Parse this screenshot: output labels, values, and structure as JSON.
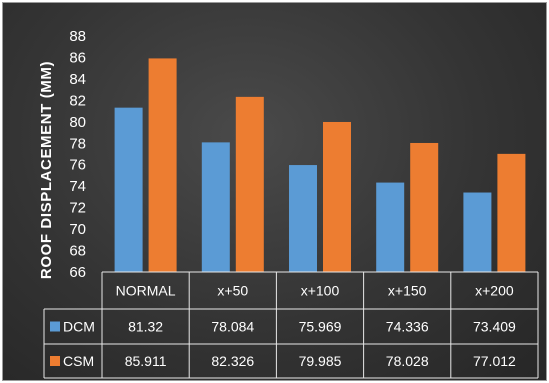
{
  "chart_data": {
    "type": "bar",
    "title": "",
    "xlabel": "",
    "ylabel": "ROOF DISPLACEMENT (MM)",
    "ylim": [
      66,
      88
    ],
    "yticks": [
      66,
      68,
      70,
      72,
      74,
      76,
      78,
      80,
      82,
      84,
      86,
      88
    ],
    "categories": [
      "NORMAL",
      "x+50",
      "x+100",
      "x+150",
      "x+200"
    ],
    "series": [
      {
        "name": "DCM",
        "color": "#5b9bd5",
        "values": [
          81.32,
          78.084,
          75.969,
          74.336,
          73.409
        ],
        "labels": [
          "81.32",
          "78.084",
          "75.969",
          "74.336",
          "73.409"
        ]
      },
      {
        "name": "CSM",
        "color": "#ed7d31",
        "values": [
          85.911,
          82.326,
          79.985,
          78.028,
          77.012
        ],
        "labels": [
          "85.911",
          "82.326",
          "79.985",
          "78.028",
          "77.012"
        ]
      }
    ],
    "grid": false,
    "legend": "data-table"
  }
}
